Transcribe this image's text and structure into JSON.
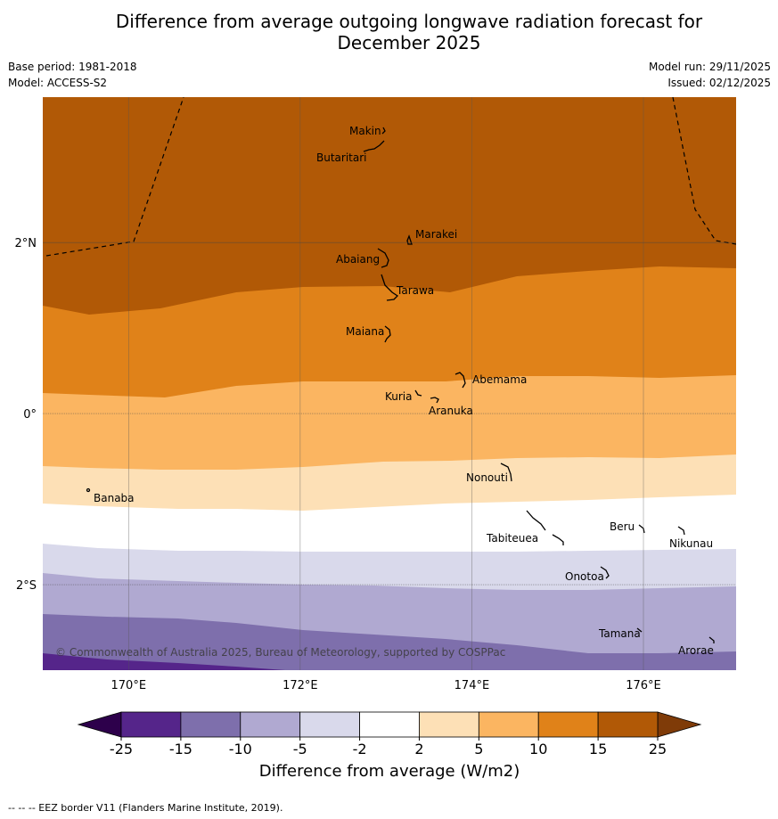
{
  "title_line1": "Difference from average outgoing longwave radiation forecast for",
  "title_line2": "December 2025",
  "base_period": "Base period: 1981-2018",
  "model": "Model: ACCESS-S2",
  "model_run": "Model run: 29/11/2025",
  "issued": "Issued: 02/12/2025",
  "copyright": "© Commonwealth of Australia 2025, Bureau of Meteorology, supported by COSPPac",
  "footer": "-- -- -- EEZ border V11 (Flanders Marine Institute, 2019).",
  "map": {
    "lon_range": [
      169,
      177.08
    ],
    "lat_range": [
      -3.0,
      3.7
    ],
    "lon_ticks": [
      {
        "value": 170,
        "label": "170°E"
      },
      {
        "value": 172,
        "label": "172°E"
      },
      {
        "value": 174,
        "label": "174°E"
      },
      {
        "value": 176,
        "label": "176°E"
      }
    ],
    "lat_ticks": [
      {
        "value": 2,
        "label": "2°N"
      },
      {
        "value": 0,
        "label": "0°"
      },
      {
        "value": -2,
        "label": "2°S"
      }
    ],
    "islands": [
      {
        "name": "Makin",
        "label": "Makin"
      },
      {
        "name": "Butaritari",
        "label": "Butaritari"
      },
      {
        "name": "Marakei",
        "label": "Marakei"
      },
      {
        "name": "Abaiang",
        "label": "Abaiang"
      },
      {
        "name": "Tarawa",
        "label": "Tarawa"
      },
      {
        "name": "Maiana",
        "label": "Maiana"
      },
      {
        "name": "Abemama",
        "label": "Abemama"
      },
      {
        "name": "Kuria",
        "label": "Kuria"
      },
      {
        "name": "Aranuka",
        "label": "Aranuka"
      },
      {
        "name": "Nonouti",
        "label": "Nonouti"
      },
      {
        "name": "Banaba",
        "label": "Banaba"
      },
      {
        "name": "Tabiteuea",
        "label": "Tabiteuea"
      },
      {
        "name": "Beru",
        "label": "Beru"
      },
      {
        "name": "Nikunau",
        "label": "Nikunau"
      },
      {
        "name": "Onotoa",
        "label": "Onotoa"
      },
      {
        "name": "Tamana",
        "label": "Tamana"
      },
      {
        "name": "Arorae",
        "label": "Arorae"
      }
    ]
  },
  "colorbar": {
    "label": "Difference from average (W/m2)",
    "ticks": [
      "-25",
      "-15",
      "-10",
      "-5",
      "-2",
      "2",
      "5",
      "10",
      "15",
      "25"
    ],
    "colors": [
      "#55258a",
      "#7e6fac",
      "#b0a9d1",
      "#d9d9eb",
      "#ffffff",
      "#fde0b6",
      "#fbb561",
      "#e08219",
      "#b15906"
    ],
    "under_color": "#2d004b",
    "over_color": "#7f3b08"
  }
}
